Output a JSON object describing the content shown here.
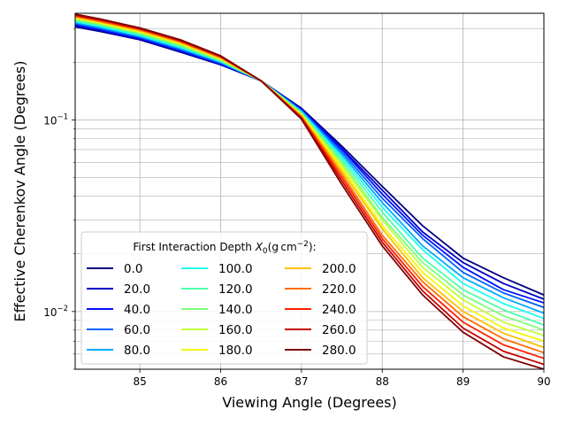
{
  "chart_data": {
    "type": "line",
    "xlabel": "Viewing Angle (Degrees)",
    "ylabel": "Effective Cherenkov Angle (Degrees)",
    "xlim": [
      84.2,
      90
    ],
    "ylim": [
      0.005,
      0.36
    ],
    "yscale": "log",
    "grid": true,
    "x_ticks": [
      "85",
      "86",
      "87",
      "88",
      "89",
      "90"
    ],
    "y_ticks": [
      {
        "label": "10",
        "exp": "−1",
        "value": 0.1
      },
      {
        "label": "10",
        "exp": "−2",
        "value": 0.01
      }
    ],
    "legend": {
      "title_main": "First Interaction Depth ",
      "title_symbol": "X",
      "title_sub": "0",
      "title_unit": "(g cm",
      "title_exp": "−2",
      "title_end": "):",
      "placement": "lower-left",
      "columns": 3
    },
    "x": [
      84.2,
      84.5,
      85.0,
      85.5,
      86.0,
      86.5,
      87.0,
      87.5,
      88.0,
      88.5,
      89.0,
      89.5,
      90.0
    ],
    "series": [
      {
        "name": "0.0",
        "color": "#00007f",
        "values": [
          0.306,
          0.29,
          0.262,
          0.226,
          0.194,
          0.16,
          0.115,
          0.073,
          0.045,
          0.028,
          0.019,
          0.015,
          0.0122
        ]
      },
      {
        "name": "20.0",
        "color": "#0000c8",
        "values": [
          0.31,
          0.293,
          0.264,
          0.228,
          0.195,
          0.16,
          0.114,
          0.071,
          0.043,
          0.026,
          0.018,
          0.014,
          0.0116
        ]
      },
      {
        "name": "40.0",
        "color": "#0010ff",
        "values": [
          0.314,
          0.296,
          0.267,
          0.23,
          0.196,
          0.16,
          0.113,
          0.07,
          0.041,
          0.025,
          0.017,
          0.013,
          0.0111
        ]
      },
      {
        "name": "60.0",
        "color": "#0060ff",
        "values": [
          0.318,
          0.3,
          0.27,
          0.233,
          0.198,
          0.16,
          0.112,
          0.068,
          0.039,
          0.024,
          0.016,
          0.0125,
          0.0105
        ]
      },
      {
        "name": "80.0",
        "color": "#00aaff",
        "values": [
          0.322,
          0.304,
          0.273,
          0.236,
          0.2,
          0.16,
          0.111,
          0.066,
          0.037,
          0.022,
          0.015,
          0.0118,
          0.0098
        ]
      },
      {
        "name": "100.0",
        "color": "#1cfff0",
        "values": [
          0.326,
          0.308,
          0.276,
          0.239,
          0.202,
          0.16,
          0.11,
          0.064,
          0.035,
          0.021,
          0.014,
          0.011,
          0.0092
        ]
      },
      {
        "name": "120.0",
        "color": "#4dffaa",
        "values": [
          0.33,
          0.312,
          0.28,
          0.242,
          0.203,
          0.16,
          0.109,
          0.062,
          0.033,
          0.019,
          0.013,
          0.0102,
          0.0085
        ]
      },
      {
        "name": "140.0",
        "color": "#7dff7a",
        "values": [
          0.334,
          0.316,
          0.283,
          0.245,
          0.205,
          0.16,
          0.108,
          0.06,
          0.031,
          0.018,
          0.0122,
          0.0095,
          0.008
        ]
      },
      {
        "name": "160.0",
        "color": "#c1ff36",
        "values": [
          0.338,
          0.319,
          0.286,
          0.248,
          0.207,
          0.16,
          0.107,
          0.058,
          0.03,
          0.017,
          0.0115,
          0.0088,
          0.0075
        ]
      },
      {
        "name": "180.0",
        "color": "#f4f802",
        "values": [
          0.341,
          0.322,
          0.289,
          0.251,
          0.209,
          0.16,
          0.106,
          0.056,
          0.028,
          0.016,
          0.0107,
          0.0082,
          0.007
        ]
      },
      {
        "name": "200.0",
        "color": "#ffc000",
        "values": [
          0.344,
          0.325,
          0.292,
          0.253,
          0.21,
          0.16,
          0.105,
          0.054,
          0.027,
          0.015,
          0.01,
          0.0077,
          0.0065
        ]
      },
      {
        "name": "220.0",
        "color": "#ff6d00",
        "values": [
          0.347,
          0.328,
          0.295,
          0.256,
          0.212,
          0.16,
          0.104,
          0.052,
          0.025,
          0.0143,
          0.0094,
          0.0072,
          0.0061
        ]
      },
      {
        "name": "240.0",
        "color": "#ff2000",
        "values": [
          0.35,
          0.331,
          0.298,
          0.258,
          0.213,
          0.16,
          0.103,
          0.05,
          0.024,
          0.0135,
          0.0088,
          0.0067,
          0.0057
        ]
      },
      {
        "name": "260.0",
        "color": "#c40000",
        "values": [
          0.353,
          0.334,
          0.3,
          0.26,
          0.215,
          0.16,
          0.102,
          0.048,
          0.023,
          0.0128,
          0.0082,
          0.0062,
          0.0053
        ]
      },
      {
        "name": "280.0",
        "color": "#7f0000",
        "values": [
          0.356,
          0.337,
          0.302,
          0.262,
          0.216,
          0.16,
          0.101,
          0.046,
          0.022,
          0.0122,
          0.0078,
          0.0058,
          0.005
        ]
      }
    ]
  }
}
